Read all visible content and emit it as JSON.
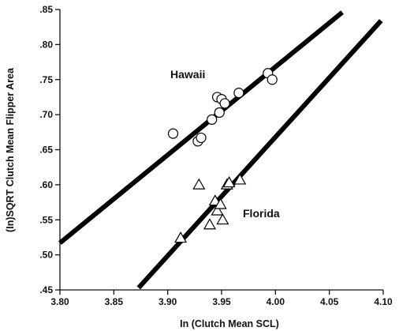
{
  "chart_data": {
    "type": "scatter",
    "title": "",
    "xlabel": "In (Clutch Mean SCL)",
    "ylabel": "(In)SQRT Clutch Mean Flipper Area",
    "xlim": [
      3.8,
      4.1
    ],
    "ylim": [
      0.45,
      0.85
    ],
    "x_ticks": [
      "3.80",
      "3.85",
      "3.90",
      "3.95",
      "4.00",
      "4.05",
      "4.10"
    ],
    "y_ticks": [
      ".45",
      ".50",
      ".55",
      ".60",
      ".65",
      ".70",
      ".75",
      ".80",
      ".85"
    ],
    "grid": false,
    "legend": "none",
    "annotations": [
      "Hawaii",
      "Florida"
    ],
    "series": [
      {
        "name": "Hawaii",
        "marker": "circle",
        "points": [
          [
            3.905,
            0.673
          ],
          [
            3.928,
            0.662
          ],
          [
            3.931,
            0.667
          ],
          [
            3.941,
            0.693
          ],
          [
            3.946,
            0.725
          ],
          [
            3.948,
            0.703
          ],
          [
            3.95,
            0.722
          ],
          [
            3.953,
            0.716
          ],
          [
            3.966,
            0.731
          ],
          [
            3.993,
            0.759
          ],
          [
            3.997,
            0.75
          ]
        ],
        "fit_line": [
          [
            3.8,
            0.517
          ],
          [
            4.062,
            0.846
          ]
        ]
      },
      {
        "name": "Florida",
        "marker": "triangle",
        "points": [
          [
            3.912,
            0.524
          ],
          [
            3.929,
            0.6
          ],
          [
            3.939,
            0.543
          ],
          [
            3.944,
            0.577
          ],
          [
            3.946,
            0.563
          ],
          [
            3.949,
            0.572
          ],
          [
            3.951,
            0.55
          ],
          [
            3.955,
            0.6
          ],
          [
            3.957,
            0.603
          ],
          [
            3.967,
            0.607
          ]
        ],
        "fit_line": [
          [
            3.873,
            0.453
          ],
          [
            4.098,
            0.834
          ]
        ]
      }
    ]
  }
}
